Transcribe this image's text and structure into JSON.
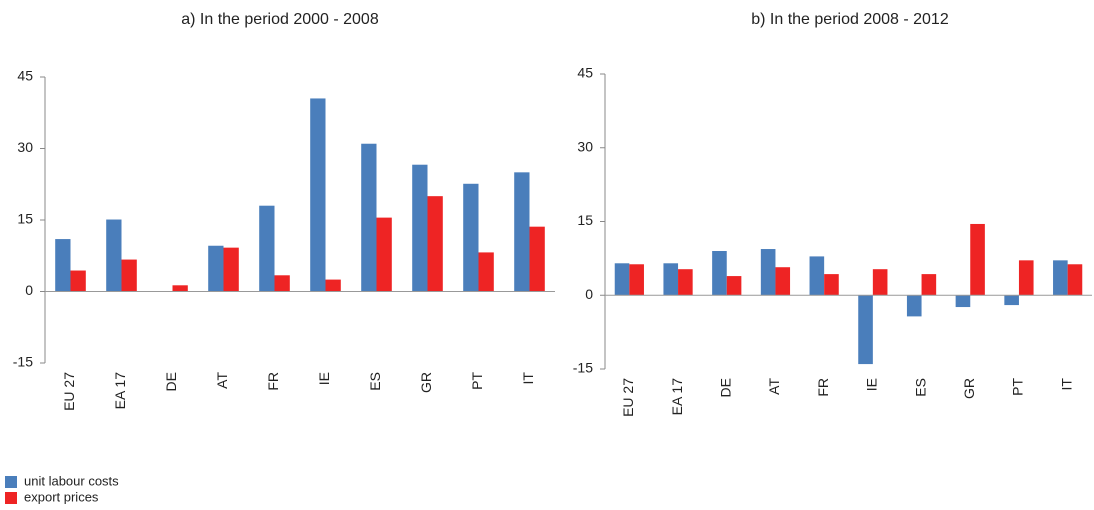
{
  "chart_data": [
    {
      "type": "bar",
      "title": "a) In the period 2000 - 2008",
      "categories": [
        "EU 27",
        "EA 17",
        "DE",
        "AT",
        "FR",
        "IE",
        "ES",
        "GR",
        "PT",
        "IT"
      ],
      "series": [
        {
          "name": "unit labour costs",
          "color": "#4a7ebb",
          "values": [
            11,
            15.1,
            0,
            9.6,
            18,
            40.5,
            31,
            26.6,
            22.6,
            25
          ]
        },
        {
          "name": "export prices",
          "color": "#ee2424",
          "values": [
            4.4,
            6.7,
            1.3,
            9.2,
            3.4,
            2.5,
            15.5,
            20,
            8.2,
            13.6
          ]
        }
      ],
      "ylim": [
        -15,
        45
      ],
      "yticks": [
        -15,
        0,
        15,
        30,
        45
      ]
    },
    {
      "type": "bar",
      "title": "b) In the period 2008 - 2012",
      "categories": [
        "EU 27",
        "EA 17",
        "DE",
        "AT",
        "FR",
        "IE",
        "ES",
        "GR",
        "PT",
        "IT"
      ],
      "series": [
        {
          "color": "#4a7ebb",
          "values": [
            6.5,
            6.5,
            9,
            9.4,
            7.9,
            -14,
            -4.3,
            -2.4,
            -2,
            7.1
          ]
        },
        {
          "color": "#ee2424",
          "values": [
            6.3,
            5.3,
            3.9,
            5.7,
            4.3,
            5.3,
            4.3,
            14.5,
            7.1,
            6.3
          ]
        }
      ],
      "ylim": [
        -15,
        45
      ],
      "yticks": [
        -15,
        0,
        15,
        30,
        45
      ]
    }
  ]
}
